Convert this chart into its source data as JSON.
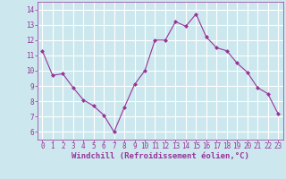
{
  "x": [
    0,
    1,
    2,
    3,
    4,
    5,
    6,
    7,
    8,
    9,
    10,
    11,
    12,
    13,
    14,
    15,
    16,
    17,
    18,
    19,
    20,
    21,
    22,
    23
  ],
  "y": [
    11.3,
    9.7,
    9.8,
    8.9,
    8.1,
    7.7,
    7.1,
    6.0,
    7.6,
    9.1,
    10.0,
    12.0,
    12.0,
    13.2,
    12.9,
    13.7,
    12.2,
    11.5,
    11.3,
    10.5,
    9.9,
    8.9,
    8.5,
    7.2
  ],
  "line_color": "#993399",
  "marker": "D",
  "marker_size": 2.0,
  "xlim": [
    -0.5,
    23.5
  ],
  "ylim": [
    5.5,
    14.5
  ],
  "yticks": [
    6,
    7,
    8,
    9,
    10,
    11,
    12,
    13,
    14
  ],
  "xticks": [
    0,
    1,
    2,
    3,
    4,
    5,
    6,
    7,
    8,
    9,
    10,
    11,
    12,
    13,
    14,
    15,
    16,
    17,
    18,
    19,
    20,
    21,
    22,
    23
  ],
  "xlabel": "Windchill (Refroidissement éolien,°C)",
  "bg_color": "#cce8ee",
  "grid_color": "#ffffff",
  "tick_color": "#993399",
  "label_fontsize": 6.5,
  "tick_fontsize": 5.5
}
